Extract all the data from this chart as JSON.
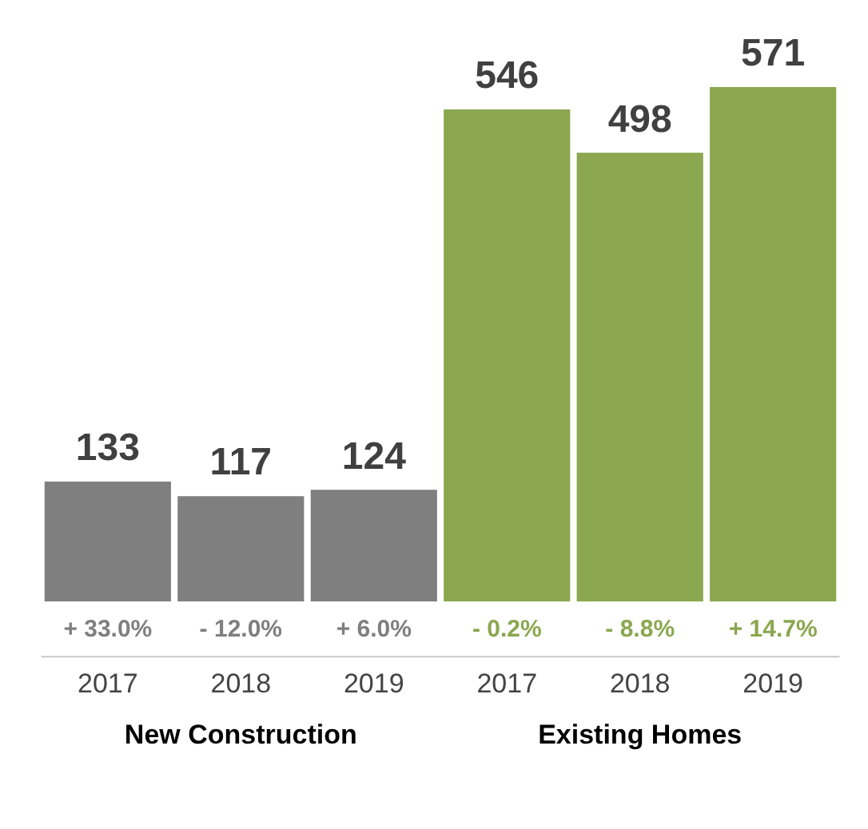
{
  "chart_data": {
    "type": "bar",
    "categories": [
      "2017",
      "2018",
      "2019",
      "2017",
      "2018",
      "2019"
    ],
    "series": [
      {
        "color": "#7f7f7f",
        "values": [
          133,
          117,
          124,
          null,
          null,
          null
        ]
      },
      {
        "color": "#8ba74f",
        "values": [
          null,
          null,
          null,
          546,
          498,
          571
        ]
      }
    ],
    "data_labels": true,
    "annotations": [
      "+ 33.0%",
      "- 12.0%",
      "+ 6.0%",
      "- 0.2%",
      "- 8.8%",
      "+ 14.7%",
      "New Construction",
      "Existing Homes"
    ],
    "grid": false,
    "legend": false
  }
}
